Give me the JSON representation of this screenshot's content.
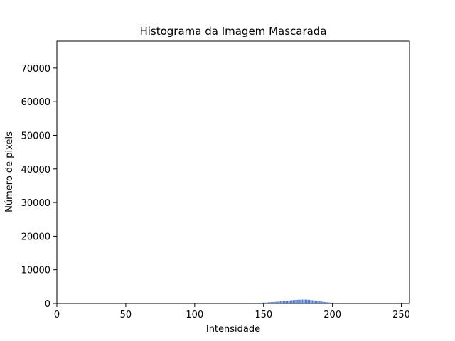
{
  "chart_data": {
    "type": "bar",
    "title": "Histograma da Imagem Mascarada",
    "xlabel": "Intensidade",
    "ylabel": "Número de pixels",
    "xlim": [
      0,
      255.9
    ],
    "ylim": [
      0,
      78000
    ],
    "xticks": [
      "0",
      "50",
      "100",
      "150",
      "200",
      "250"
    ],
    "yticks": [
      "0",
      "10000",
      "20000",
      "30000",
      "40000",
      "50000",
      "60000",
      "70000"
    ],
    "grid": false,
    "bar_color": "#4a79d6",
    "x": [
      143,
      144,
      145,
      146,
      147,
      148,
      149,
      150,
      151,
      152,
      153,
      154,
      155,
      156,
      157,
      158,
      159,
      160,
      161,
      162,
      163,
      164,
      165,
      166,
      167,
      168,
      169,
      170,
      171,
      172,
      173,
      174,
      175,
      176,
      177,
      178,
      179,
      180,
      181,
      182,
      183,
      184,
      185,
      186,
      187,
      188,
      189,
      190,
      191,
      192,
      193,
      194,
      195,
      196,
      197,
      198,
      199,
      200,
      201,
      202,
      203,
      204,
      205,
      206,
      207,
      208
    ],
    "values": [
      60,
      110,
      160,
      190,
      210,
      230,
      250,
      260,
      280,
      300,
      330,
      360,
      390,
      420,
      450,
      480,
      510,
      550,
      590,
      630,
      670,
      700,
      740,
      780,
      820,
      860,
      900,
      950,
      990,
      1030,
      1060,
      1090,
      1110,
      1130,
      1140,
      1150,
      1150,
      1140,
      1120,
      1090,
      1050,
      1010,
      960,
      910,
      860,
      800,
      740,
      680,
      620,
      560,
      500,
      440,
      390,
      340,
      300,
      260,
      230,
      200,
      170,
      150,
      130,
      110,
      90,
      70,
      50,
      30
    ]
  }
}
